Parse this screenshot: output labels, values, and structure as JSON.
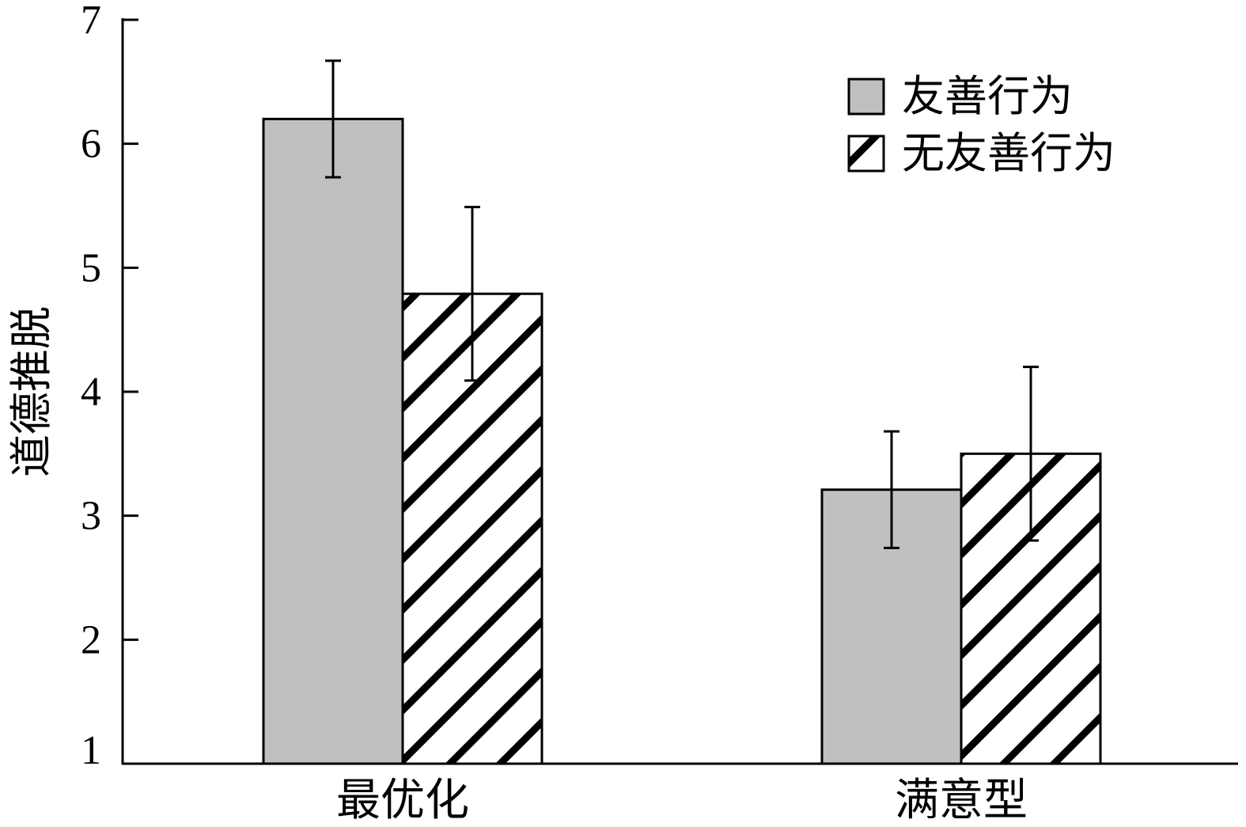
{
  "chart_data": {
    "type": "bar",
    "title": "",
    "xlabel": "",
    "ylabel": "道德推脱",
    "ylim": [
      1,
      7
    ],
    "yticks": [
      1,
      2,
      3,
      4,
      5,
      6,
      7
    ],
    "categories": [
      "最优化",
      "满意型"
    ],
    "series": [
      {
        "name": "友善行为",
        "values": [
          6.2,
          3.21
        ],
        "errors": [
          0.47,
          0.47
        ],
        "fill": "#c0bfc2",
        "pattern": "solid"
      },
      {
        "name": "无友善行为",
        "values": [
          4.79,
          3.5
        ],
        "errors": [
          0.7,
          0.7
        ],
        "fill": "#ffffff",
        "pattern": "hatch"
      }
    ],
    "legend": {
      "position": "top-right"
    },
    "grid": false
  }
}
